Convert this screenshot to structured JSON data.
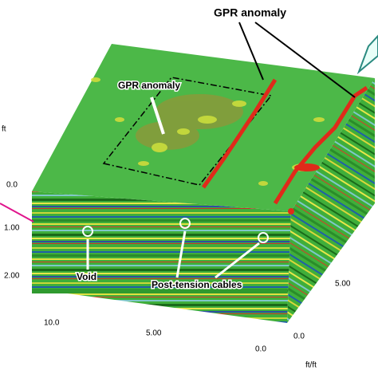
{
  "figure": {
    "annotations": {
      "top_anomaly": "GPR anomaly",
      "inner_anomaly": "GPR anomaly",
      "void": "Void",
      "cables": "Post-tension cables"
    },
    "depth_axis": {
      "unit": "ft",
      "labels": [
        "0.0",
        "1.00",
        "2.00"
      ]
    },
    "right_axis": {
      "labels": [
        "5.00"
      ]
    },
    "bottom_axis": {
      "labels": [
        "10.0",
        "5.00",
        "0.0"
      ]
    },
    "bottom_right": {
      "origin": "0.0",
      "unit": "ft/ft"
    }
  }
}
